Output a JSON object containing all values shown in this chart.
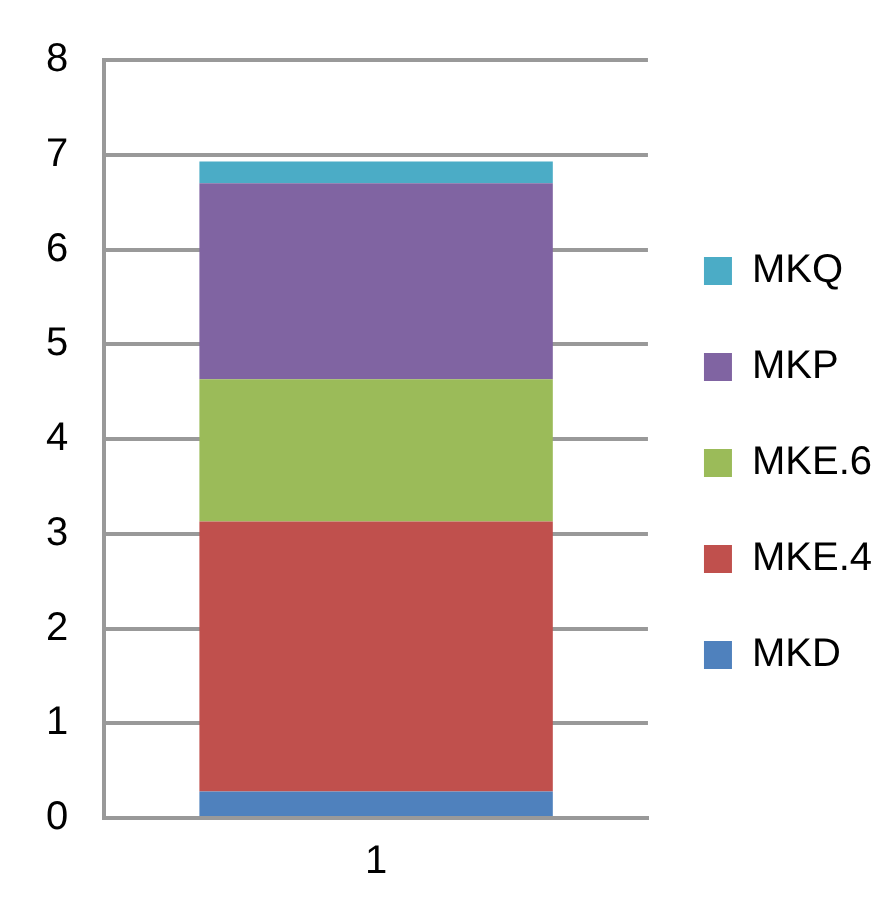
{
  "chart_data": {
    "type": "bar",
    "stacked": true,
    "categories": [
      "1"
    ],
    "series": [
      {
        "name": "MKD",
        "color": "#4f81bd",
        "values": [
          0.28
        ]
      },
      {
        "name": "MKE.4",
        "color": "#c0504d",
        "values": [
          2.85
        ]
      },
      {
        "name": "MKE.6",
        "color": "#9bbb59",
        "values": [
          1.5
        ]
      },
      {
        "name": "MKP",
        "color": "#8064a2",
        "values": [
          2.07
        ]
      },
      {
        "name": "MKQ",
        "color": "#4bacc6",
        "values": [
          0.23
        ]
      }
    ],
    "ylim": [
      0,
      8
    ],
    "yticks": [
      0,
      1,
      2,
      3,
      4,
      5,
      6,
      7,
      8
    ],
    "grid": "y",
    "legend": "right"
  }
}
